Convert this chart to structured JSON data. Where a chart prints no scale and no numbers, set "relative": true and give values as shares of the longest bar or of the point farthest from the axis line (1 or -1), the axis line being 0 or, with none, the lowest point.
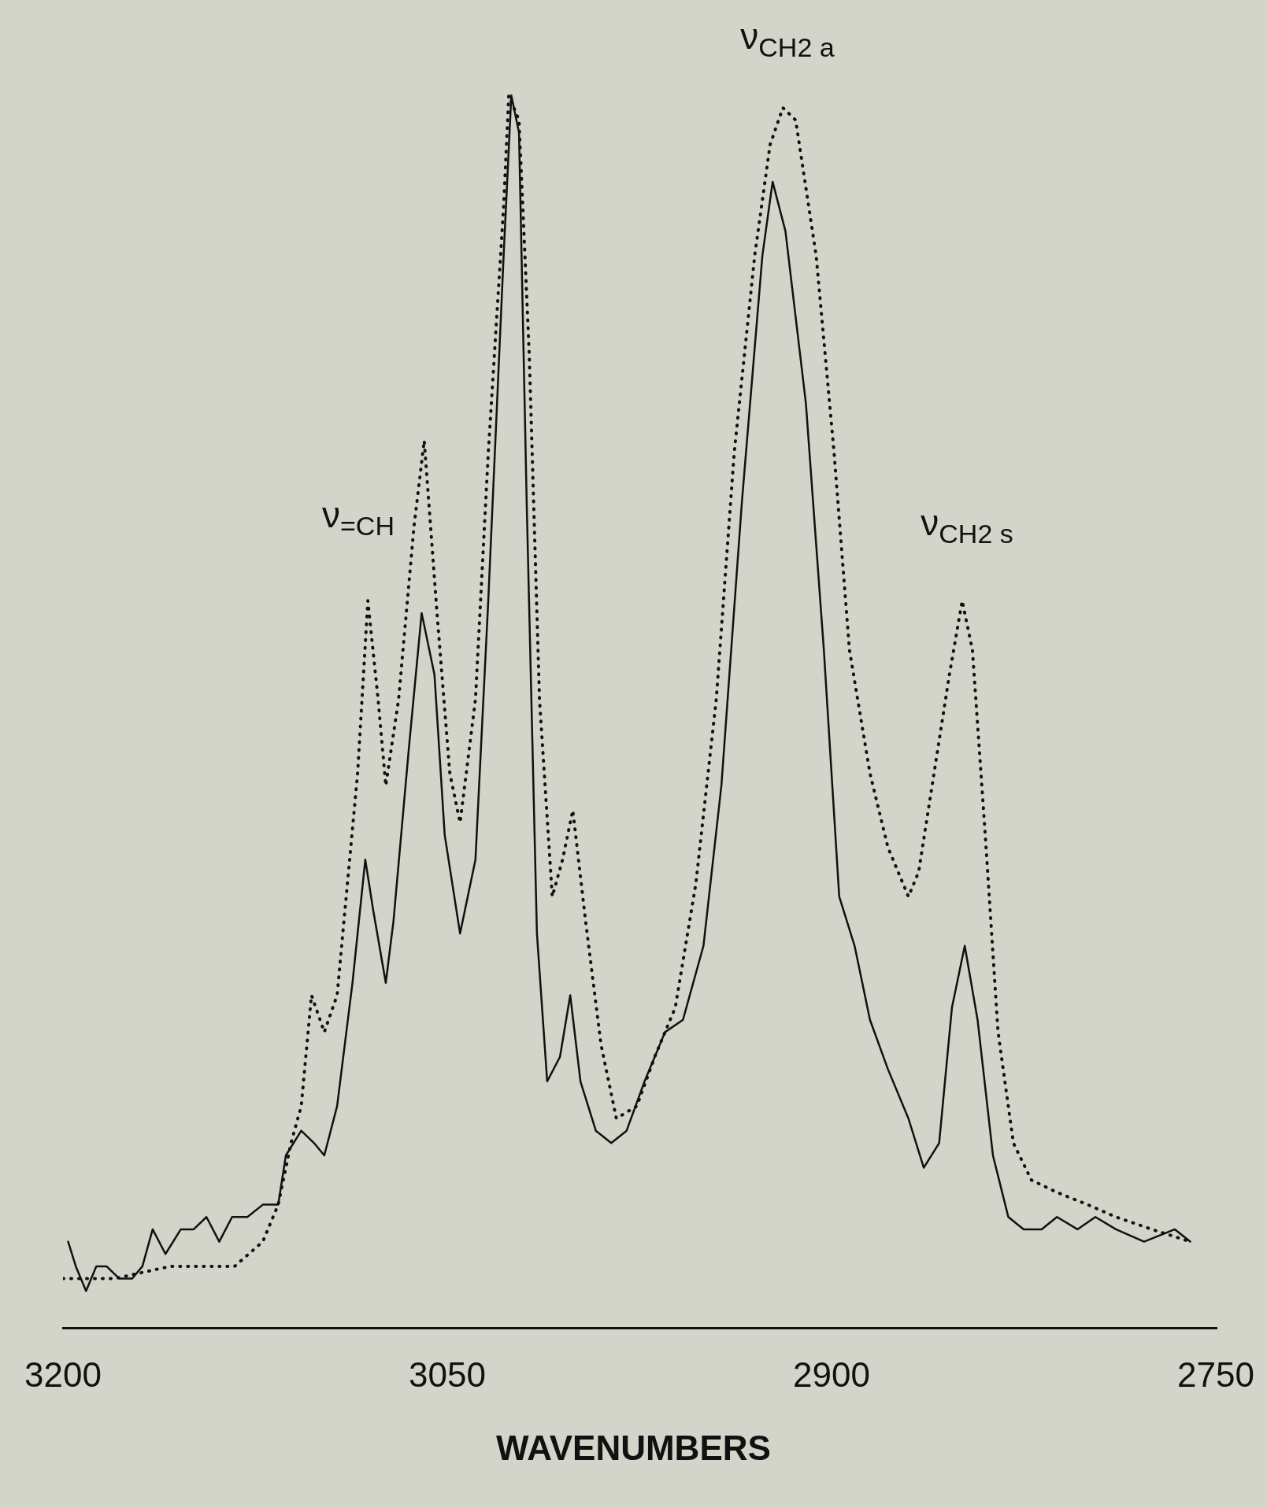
{
  "chart_data": {
    "type": "line",
    "relative": true,
    "xlabel": "WAVENUMBERS",
    "xlim": [
      3200,
      2750
    ],
    "xticks": [
      3200,
      3050,
      2900,
      2750
    ],
    "grid": false,
    "legend": false,
    "marker": "none",
    "annotations": [
      "ν$_{=CH}$",
      "ν$_{CH2 a}$",
      "ν$_{CH2 s}$"
    ],
    "series": [
      {
        "color": "#111111",
        "line_style": "solid",
        "x": [
          3198,
          3195,
          3191,
          3187,
          3183,
          3178,
          3173,
          3169,
          3165,
          3160,
          3154,
          3149,
          3144,
          3139,
          3134,
          3128,
          3122,
          3116,
          3113,
          3107,
          3102,
          3098,
          3093,
          3087,
          3082,
          3079,
          3074,
          3071,
          3065,
          3060,
          3055,
          3051,
          3045,
          3039,
          3034,
          3028,
          3025,
          3022,
          3019,
          3015,
          3011,
          3006,
          3002,
          2998,
          2992,
          2986,
          2980,
          2973,
          2965,
          2958,
          2950,
          2943,
          2935,
          2927,
          2923,
          2918,
          2910,
          2903,
          2897,
          2891,
          2885,
          2878,
          2870,
          2864,
          2858,
          2853,
          2848,
          2843,
          2837,
          2831,
          2825,
          2818,
          2812,
          2804,
          2797,
          2789,
          2778,
          2766,
          2760
        ],
        "values": [
          0.07,
          0.05,
          0.03,
          0.05,
          0.05,
          0.04,
          0.04,
          0.05,
          0.08,
          0.06,
          0.08,
          0.08,
          0.09,
          0.07,
          0.09,
          0.09,
          0.1,
          0.1,
          0.14,
          0.16,
          0.15,
          0.14,
          0.18,
          0.28,
          0.38,
          0.34,
          0.28,
          0.33,
          0.47,
          0.58,
          0.53,
          0.4,
          0.32,
          0.38,
          0.59,
          0.87,
          1.0,
          0.97,
          0.67,
          0.32,
          0.2,
          0.22,
          0.27,
          0.2,
          0.16,
          0.15,
          0.16,
          0.2,
          0.24,
          0.25,
          0.31,
          0.44,
          0.67,
          0.87,
          0.93,
          0.89,
          0.75,
          0.55,
          0.35,
          0.31,
          0.25,
          0.21,
          0.17,
          0.13,
          0.15,
          0.26,
          0.31,
          0.25,
          0.14,
          0.09,
          0.08,
          0.08,
          0.09,
          0.08,
          0.09,
          0.08,
          0.07,
          0.08,
          0.07
        ]
      },
      {
        "color": "#111111",
        "line_style": "dotted",
        "x": [
          3200,
          3180,
          3158,
          3133,
          3122,
          3116,
          3111,
          3107,
          3103,
          3098,
          3093,
          3089,
          3085,
          3081,
          3077,
          3074,
          3069,
          3063,
          3059,
          3054,
          3049,
          3045,
          3039,
          3034,
          3028,
          3026,
          3022,
          3018,
          3014,
          3009,
          3005,
          3001,
          2996,
          2990,
          2984,
          2976,
          2969,
          2961,
          2953,
          2945,
          2938,
          2930,
          2924,
          2919,
          2914,
          2906,
          2899,
          2893,
          2885,
          2878,
          2870,
          2866,
          2860,
          2854,
          2849,
          2845,
          2840,
          2835,
          2829,
          2822,
          2812,
          2800,
          2789,
          2775,
          2760
        ],
        "values": [
          0.04,
          0.04,
          0.05,
          0.05,
          0.07,
          0.1,
          0.15,
          0.18,
          0.27,
          0.24,
          0.27,
          0.36,
          0.45,
          0.59,
          0.51,
          0.44,
          0.51,
          0.65,
          0.72,
          0.58,
          0.45,
          0.41,
          0.51,
          0.71,
          0.91,
          1.0,
          0.98,
          0.79,
          0.51,
          0.35,
          0.38,
          0.42,
          0.33,
          0.23,
          0.17,
          0.18,
          0.22,
          0.26,
          0.36,
          0.51,
          0.71,
          0.87,
          0.96,
          0.99,
          0.98,
          0.87,
          0.71,
          0.55,
          0.45,
          0.39,
          0.35,
          0.37,
          0.45,
          0.53,
          0.59,
          0.55,
          0.4,
          0.24,
          0.15,
          0.12,
          0.11,
          0.1,
          0.09,
          0.08,
          0.07
        ]
      }
    ]
  }
}
